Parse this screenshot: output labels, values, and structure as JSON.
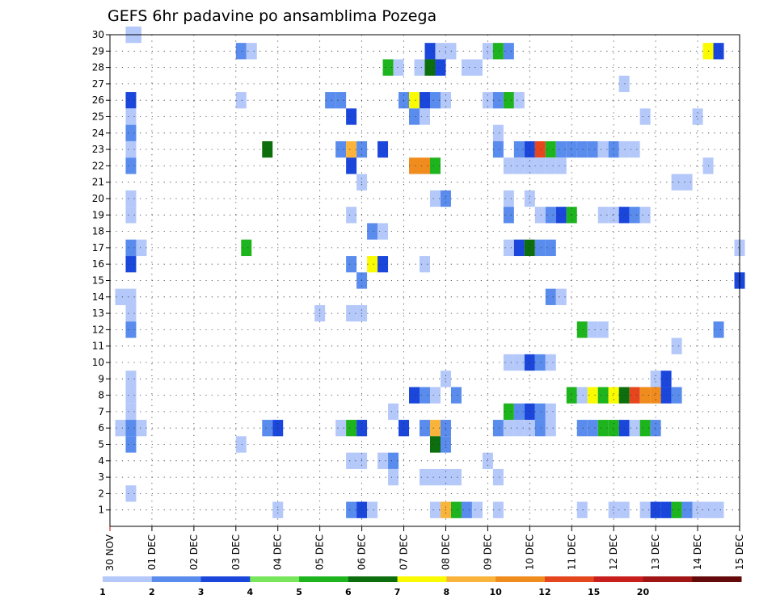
{
  "chart_data": {
    "type": "heatmap",
    "title": "GEFS 6hr padavine po ansamblima Pozega",
    "xlabel": "",
    "ylabel": "",
    "x_tick_labels": [
      "30 NOV",
      "01 DEC",
      "02 DEC",
      "03 DEC",
      "04 DEC",
      "05 DEC",
      "06 DEC",
      "07 DEC",
      "08 DEC",
      "09 DEC",
      "10 DEC",
      "11 DEC",
      "12 DEC",
      "13 DEC",
      "14 DEC",
      "15 DEC"
    ],
    "y_tick_labels": [
      "1",
      "2",
      "3",
      "4",
      "5",
      "6",
      "7",
      "8",
      "9",
      "10",
      "11",
      "12",
      "13",
      "14",
      "15",
      "16",
      "17",
      "18",
      "19",
      "20",
      "21",
      "22",
      "23",
      "24",
      "25",
      "26",
      "27",
      "28",
      "29",
      "30"
    ],
    "x_range_days": [
      0,
      15
    ],
    "y_range_members": [
      0,
      30
    ],
    "cell_width_days": 0.25,
    "grid": true,
    "legend": {
      "placement": "bottom",
      "colors": [
        "#b4c8fa",
        "#5a8ced",
        "#1a46dc",
        "#78e65a",
        "#1eb41e",
        "#0c6e0c",
        "#fafa00",
        "#fab43c",
        "#f08c1e",
        "#e6461e",
        "#c81e1e",
        "#a01414",
        "#640a0a"
      ],
      "labels": [
        "1",
        "2",
        "3",
        "4",
        "5",
        "6",
        "7",
        "8",
        "10",
        "12",
        "15",
        "20",
        ""
      ]
    },
    "cells": [
      [
        0.375,
        30,
        1
      ],
      [
        0.5,
        30,
        1
      ],
      [
        3.0,
        29,
        2
      ],
      [
        3.25,
        29,
        1
      ],
      [
        7.5,
        29,
        3
      ],
      [
        7.75,
        29,
        1
      ],
      [
        8.0,
        29,
        1
      ],
      [
        8.875,
        29,
        1
      ],
      [
        9.125,
        29,
        5
      ],
      [
        9.375,
        29,
        2
      ],
      [
        14.125,
        29,
        7
      ],
      [
        14.375,
        29,
        3
      ],
      [
        6.5,
        28,
        5
      ],
      [
        6.75,
        28,
        1
      ],
      [
        7.25,
        28,
        1
      ],
      [
        7.5,
        28,
        6
      ],
      [
        7.75,
        28,
        3
      ],
      [
        8.375,
        28,
        1
      ],
      [
        8.625,
        28,
        1
      ],
      [
        12.125,
        27,
        1
      ],
      [
        0.375,
        26,
        3
      ],
      [
        3.0,
        26,
        1
      ],
      [
        5.125,
        26,
        2
      ],
      [
        5.375,
        26,
        2
      ],
      [
        6.875,
        26,
        2
      ],
      [
        7.125,
        26,
        7
      ],
      [
        7.375,
        26,
        3
      ],
      [
        7.625,
        26,
        2
      ],
      [
        7.875,
        26,
        1
      ],
      [
        8.875,
        26,
        1
      ],
      [
        9.125,
        26,
        2
      ],
      [
        9.375,
        26,
        5
      ],
      [
        9.625,
        26,
        1
      ],
      [
        0.375,
        25,
        1
      ],
      [
        5.625,
        25,
        3
      ],
      [
        7.125,
        25,
        2
      ],
      [
        7.375,
        25,
        1
      ],
      [
        12.625,
        25,
        1
      ],
      [
        13.875,
        25,
        1
      ],
      [
        0.375,
        24,
        2
      ],
      [
        9.125,
        24,
        1
      ],
      [
        0.375,
        23,
        1
      ],
      [
        3.625,
        23,
        6
      ],
      [
        5.375,
        23,
        2
      ],
      [
        5.625,
        23,
        8
      ],
      [
        5.875,
        23,
        2
      ],
      [
        6.375,
        23,
        3
      ],
      [
        9.125,
        23,
        2
      ],
      [
        9.625,
        23,
        2
      ],
      [
        9.875,
        23,
        3
      ],
      [
        10.125,
        23,
        10
      ],
      [
        10.375,
        23,
        5
      ],
      [
        10.625,
        23,
        2
      ],
      [
        10.875,
        23,
        2
      ],
      [
        11.125,
        23,
        2
      ],
      [
        11.375,
        23,
        2
      ],
      [
        11.625,
        23,
        1
      ],
      [
        11.875,
        23,
        2
      ],
      [
        12.125,
        23,
        1
      ],
      [
        12.375,
        23,
        1
      ],
      [
        0.375,
        22,
        2
      ],
      [
        5.625,
        22,
        3
      ],
      [
        7.125,
        22,
        9
      ],
      [
        7.375,
        22,
        9
      ],
      [
        7.625,
        22,
        5
      ],
      [
        9.375,
        22,
        1
      ],
      [
        9.625,
        22,
        1
      ],
      [
        9.875,
        22,
        1
      ],
      [
        10.125,
        22,
        1
      ],
      [
        10.375,
        22,
        1
      ],
      [
        10.625,
        22,
        1
      ],
      [
        14.125,
        22,
        1
      ],
      [
        5.875,
        21,
        1
      ],
      [
        13.375,
        21,
        1
      ],
      [
        13.625,
        21,
        1
      ],
      [
        0.375,
        20,
        1
      ],
      [
        7.625,
        20,
        1
      ],
      [
        7.875,
        20,
        2
      ],
      [
        9.375,
        20,
        1
      ],
      [
        9.875,
        20,
        1
      ],
      [
        0.375,
        19,
        1
      ],
      [
        5.625,
        19,
        1
      ],
      [
        9.375,
        19,
        2
      ],
      [
        10.125,
        19,
        1
      ],
      [
        10.375,
        19,
        2
      ],
      [
        10.625,
        19,
        3
      ],
      [
        10.875,
        19,
        5
      ],
      [
        11.625,
        19,
        1
      ],
      [
        11.875,
        19,
        1
      ],
      [
        12.125,
        19,
        3
      ],
      [
        12.375,
        19,
        2
      ],
      [
        12.625,
        19,
        1
      ],
      [
        6.125,
        18,
        2
      ],
      [
        6.375,
        18,
        1
      ],
      [
        0.375,
        17,
        2
      ],
      [
        0.625,
        17,
        1
      ],
      [
        3.125,
        17,
        5
      ],
      [
        9.375,
        17,
        1
      ],
      [
        9.625,
        17,
        3
      ],
      [
        9.875,
        17,
        6
      ],
      [
        10.125,
        17,
        2
      ],
      [
        10.375,
        17,
        2
      ],
      [
        14.875,
        17,
        1
      ],
      [
        0.375,
        16,
        3
      ],
      [
        5.625,
        16,
        2
      ],
      [
        6.125,
        16,
        7
      ],
      [
        6.375,
        16,
        3
      ],
      [
        7.375,
        16,
        1
      ],
      [
        5.875,
        15,
        2
      ],
      [
        14.875,
        15,
        3
      ],
      [
        0.125,
        14,
        1
      ],
      [
        0.375,
        14,
        1
      ],
      [
        10.375,
        14,
        2
      ],
      [
        10.625,
        14,
        1
      ],
      [
        0.375,
        13,
        1
      ],
      [
        4.875,
        13,
        1
      ],
      [
        5.625,
        13,
        1
      ],
      [
        5.875,
        13,
        1
      ],
      [
        0.375,
        12,
        2
      ],
      [
        11.125,
        12,
        5
      ],
      [
        11.375,
        12,
        1
      ],
      [
        11.625,
        12,
        1
      ],
      [
        14.375,
        12,
        2
      ],
      [
        13.375,
        11,
        1
      ],
      [
        9.375,
        10,
        1
      ],
      [
        9.625,
        10,
        1
      ],
      [
        9.875,
        10,
        3
      ],
      [
        10.125,
        10,
        2
      ],
      [
        10.375,
        10,
        1
      ],
      [
        0.375,
        9,
        1
      ],
      [
        7.875,
        9,
        1
      ],
      [
        12.875,
        9,
        1
      ],
      [
        13.125,
        9,
        3
      ],
      [
        0.375,
        8,
        1
      ],
      [
        7.125,
        8,
        3
      ],
      [
        7.375,
        8,
        2
      ],
      [
        7.625,
        8,
        1
      ],
      [
        8.125,
        8,
        2
      ],
      [
        10.875,
        8,
        5
      ],
      [
        11.125,
        8,
        1
      ],
      [
        11.375,
        8,
        7
      ],
      [
        11.625,
        8,
        5
      ],
      [
        11.875,
        8,
        7
      ],
      [
        12.125,
        8,
        6
      ],
      [
        12.375,
        8,
        10
      ],
      [
        12.625,
        8,
        9
      ],
      [
        12.875,
        8,
        9
      ],
      [
        13.125,
        8,
        3
      ],
      [
        13.375,
        8,
        2
      ],
      [
        0.375,
        7,
        1
      ],
      [
        6.625,
        7,
        1
      ],
      [
        9.375,
        7,
        5
      ],
      [
        9.625,
        7,
        2
      ],
      [
        9.875,
        7,
        3
      ],
      [
        10.125,
        7,
        2
      ],
      [
        10.375,
        7,
        1
      ],
      [
        0.125,
        6,
        1
      ],
      [
        0.375,
        6,
        2
      ],
      [
        0.625,
        6,
        1
      ],
      [
        3.625,
        6,
        2
      ],
      [
        3.875,
        6,
        3
      ],
      [
        5.375,
        6,
        1
      ],
      [
        5.625,
        6,
        5
      ],
      [
        5.875,
        6,
        3
      ],
      [
        6.875,
        6,
        3
      ],
      [
        7.375,
        6,
        2
      ],
      [
        7.625,
        6,
        8
      ],
      [
        7.875,
        6,
        2
      ],
      [
        9.125,
        6,
        2
      ],
      [
        9.375,
        6,
        1
      ],
      [
        9.625,
        6,
        1
      ],
      [
        9.875,
        6,
        1
      ],
      [
        10.125,
        6,
        2
      ],
      [
        10.375,
        6,
        1
      ],
      [
        11.125,
        6,
        2
      ],
      [
        11.375,
        6,
        2
      ],
      [
        11.625,
        6,
        5
      ],
      [
        11.875,
        6,
        5
      ],
      [
        12.125,
        6,
        3
      ],
      [
        12.375,
        6,
        1
      ],
      [
        12.625,
        6,
        5
      ],
      [
        12.875,
        6,
        2
      ],
      [
        0.375,
        5,
        2
      ],
      [
        3.0,
        5,
        1
      ],
      [
        7.625,
        5,
        6
      ],
      [
        7.875,
        5,
        2
      ],
      [
        5.625,
        4,
        1
      ],
      [
        5.875,
        4,
        1
      ],
      [
        6.375,
        4,
        1
      ],
      [
        6.625,
        4,
        2
      ],
      [
        8.875,
        4,
        1
      ],
      [
        6.625,
        3,
        1
      ],
      [
        7.375,
        3,
        1
      ],
      [
        7.625,
        3,
        1
      ],
      [
        7.875,
        3,
        1
      ],
      [
        8.125,
        3,
        1
      ],
      [
        9.125,
        3,
        1
      ],
      [
        0.375,
        2,
        1
      ],
      [
        3.875,
        1,
        1
      ],
      [
        5.625,
        1,
        2
      ],
      [
        5.875,
        1,
        3
      ],
      [
        6.125,
        1,
        1
      ],
      [
        7.625,
        1,
        1
      ],
      [
        7.875,
        1,
        8
      ],
      [
        8.125,
        1,
        5
      ],
      [
        8.375,
        1,
        2
      ],
      [
        8.625,
        1,
        1
      ],
      [
        9.125,
        1,
        1
      ],
      [
        11.125,
        1,
        1
      ],
      [
        11.875,
        1,
        1
      ],
      [
        12.125,
        1,
        1
      ],
      [
        12.625,
        1,
        1
      ],
      [
        12.875,
        1,
        3
      ],
      [
        13.125,
        1,
        3
      ],
      [
        13.375,
        1,
        5
      ],
      [
        13.625,
        1,
        2
      ],
      [
        13.875,
        1,
        1
      ],
      [
        14.125,
        1,
        1
      ],
      [
        14.375,
        1,
        1
      ]
    ]
  }
}
